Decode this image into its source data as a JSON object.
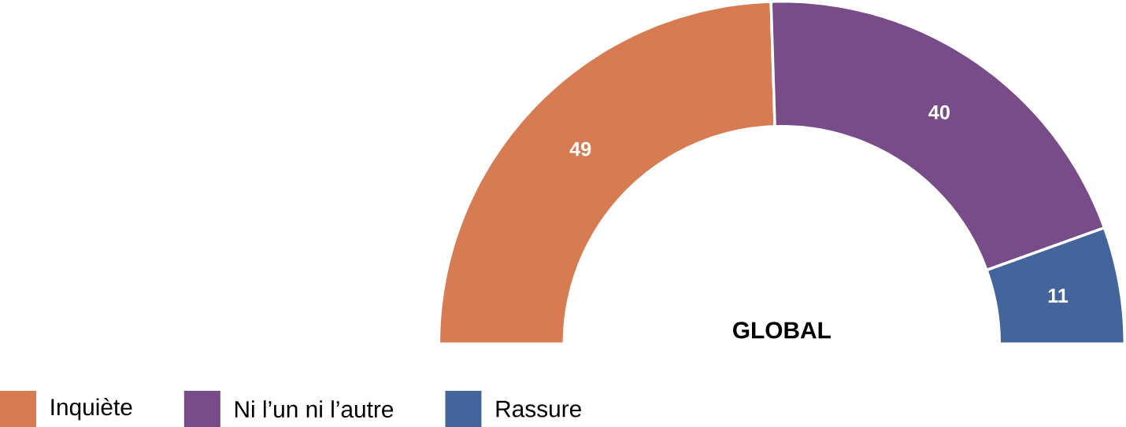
{
  "chart_data": {
    "type": "donut",
    "title": "GLOBAL",
    "categories": [
      "Inquiète",
      "Ni l’un ni l’autre",
      "Rassure"
    ],
    "values": [
      49,
      40,
      11
    ],
    "colors": [
      "#d77b53",
      "#774c89",
      "#44649c"
    ],
    "data_labels": true,
    "legend": "bottom"
  }
}
